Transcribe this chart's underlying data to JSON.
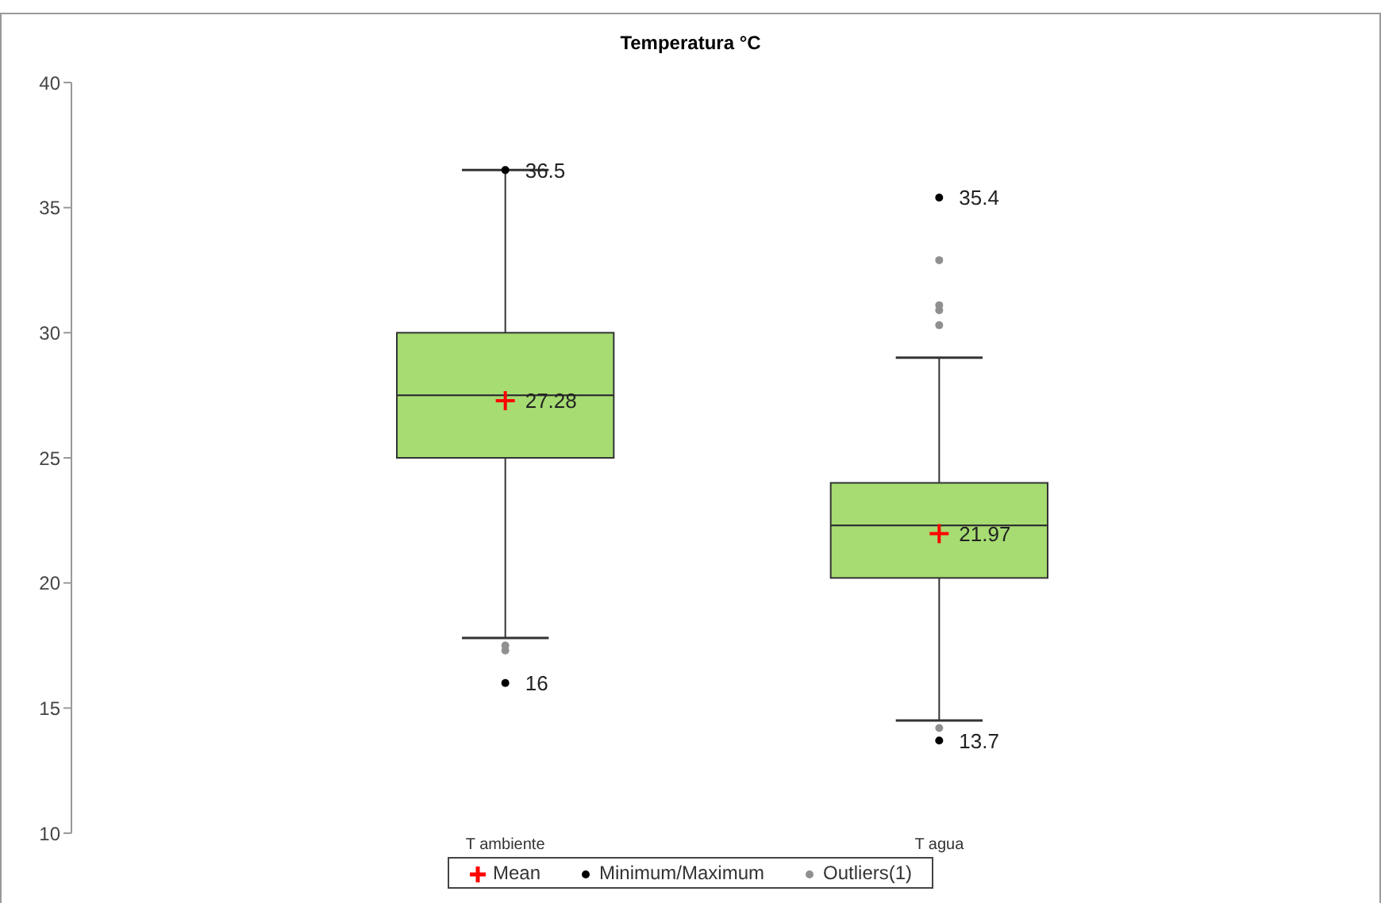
{
  "chart_data": {
    "type": "box",
    "title": "Temperatura °C",
    "categories": [
      "T ambiente",
      "T agua"
    ],
    "boxes": [
      {
        "low": 17.8,
        "q1": 25,
        "median": 27.5,
        "q3": 30,
        "high": 36.5
      },
      {
        "low": 14.5,
        "q1": 20.2,
        "median": 22.3,
        "q3": 24,
        "high": 29
      }
    ],
    "color": "#a6dc72",
    "ylim": [
      10,
      40
    ],
    "yticks": [
      10,
      15,
      20,
      25,
      30,
      35,
      40
    ],
    "legend": "bottom",
    "series": [
      {
        "name": "Mean",
        "type": "scatter",
        "marker": "cross",
        "color": "#ff0000",
        "x": [
          "T ambiente",
          "T agua"
        ],
        "values": [
          27.28,
          21.97
        ],
        "value_labels": [
          "27.28",
          "21.97"
        ]
      },
      {
        "name": "Minimum/Maximum",
        "type": "scatter",
        "marker": "circle",
        "color": "#000000",
        "x": [
          "T ambiente",
          "T ambiente",
          "T agua",
          "T agua"
        ],
        "values": [
          36.5,
          16,
          35.4,
          13.7
        ],
        "value_labels": [
          "36.5",
          "16",
          "35.4",
          "13.7"
        ]
      },
      {
        "name": "Outliers(1)",
        "type": "scatter",
        "marker": "circle",
        "color": "#909090",
        "x": [
          "T ambiente",
          "T ambiente",
          "T agua",
          "T agua",
          "T agua",
          "T agua",
          "T agua"
        ],
        "values": [
          17.5,
          17.3,
          32.9,
          31.1,
          30.9,
          30.3,
          14.2
        ]
      }
    ]
  }
}
